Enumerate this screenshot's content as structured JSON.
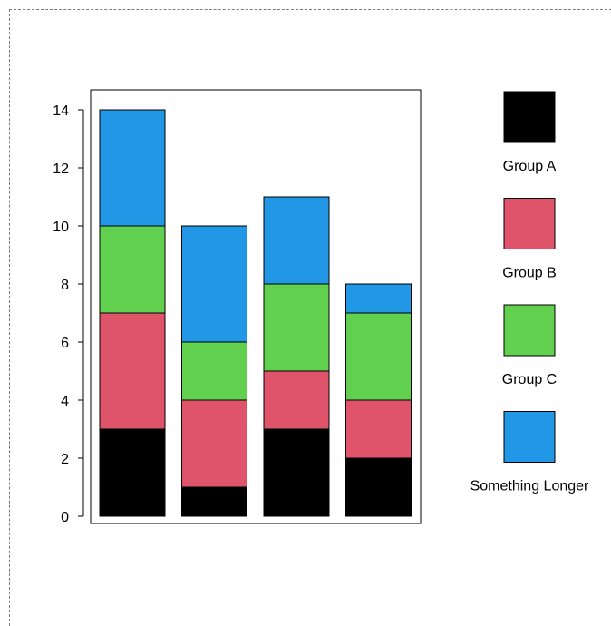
{
  "chart_data": {
    "type": "bar",
    "stacked": true,
    "title": "",
    "xlabel": "",
    "ylabel": "",
    "ylim": [
      0,
      14
    ],
    "yticks": [
      0,
      2,
      4,
      6,
      8,
      10,
      12,
      14
    ],
    "categories": [
      "",
      "",
      "",
      ""
    ],
    "grid": false,
    "legend_position": "right",
    "series": [
      {
        "name": "Group A",
        "color": "#000000",
        "values": [
          3,
          1,
          3,
          2
        ]
      },
      {
        "name": "Group B",
        "color": "#df536b",
        "values": [
          4,
          3,
          2,
          2
        ]
      },
      {
        "name": "Group C",
        "color": "#61d04f",
        "values": [
          3,
          2,
          3,
          3
        ]
      },
      {
        "name": "Something Longer",
        "color": "#2297e6",
        "values": [
          4,
          4,
          3,
          1
        ]
      }
    ]
  }
}
